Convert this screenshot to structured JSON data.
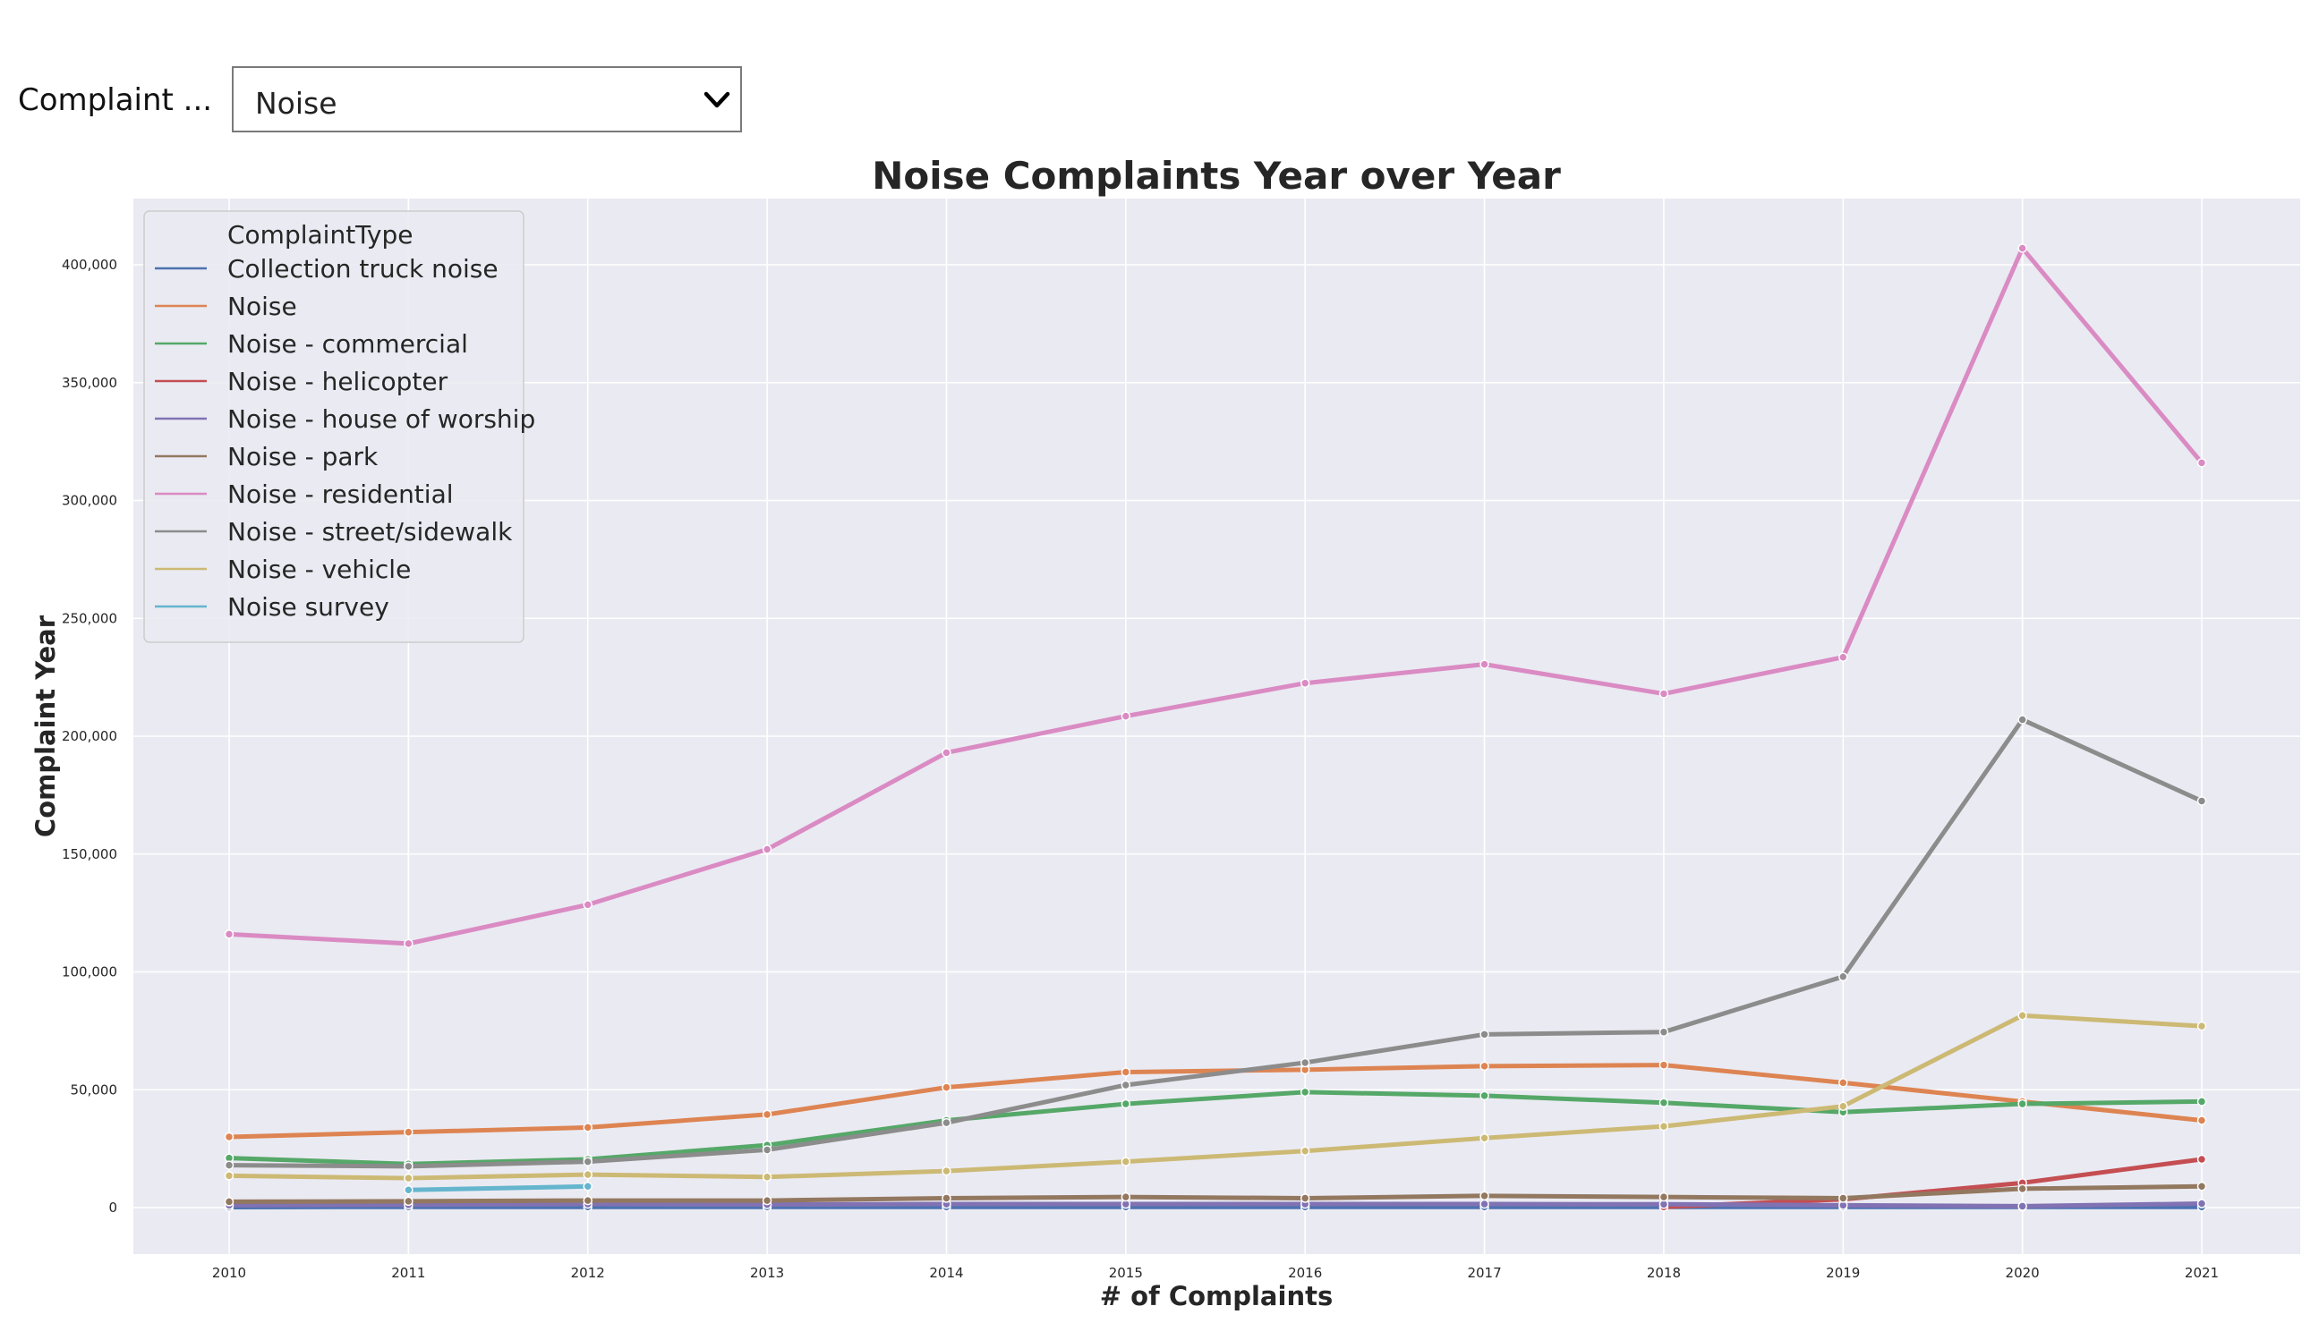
{
  "filter": {
    "label": "Complaint ...",
    "selected": "Noise"
  },
  "chart_data": {
    "type": "line",
    "title": "Noise Complaints Year over Year",
    "xlabel": "# of Complaints",
    "ylabel": "Complaint Year",
    "x": [
      2010,
      2011,
      2012,
      2013,
      2014,
      2015,
      2016,
      2017,
      2018,
      2019,
      2020,
      2021
    ],
    "ylim": [
      -20000,
      425000
    ],
    "yticks": [
      0,
      50000,
      100000,
      150000,
      200000,
      250000,
      300000,
      350000,
      400000
    ],
    "ytick_labels": [
      "0",
      "50,000",
      "100,000",
      "150,000",
      "200,000",
      "250,000",
      "300,000",
      "350,000",
      "400,000"
    ],
    "grid": true,
    "legend_title": "ComplaintType",
    "legend_position": "top-left",
    "series": [
      {
        "name": "Collection truck noise",
        "color": "#4c72b0",
        "values": [
          200,
          300,
          300,
          300,
          300,
          300,
          300,
          300,
          300,
          300,
          300,
          300
        ]
      },
      {
        "name": "Noise",
        "color": "#dd8452",
        "values": [
          30000,
          32000,
          34000,
          39500,
          51000,
          57500,
          58500,
          60000,
          60500,
          53000,
          45000,
          37000
        ]
      },
      {
        "name": "Noise - commercial",
        "color": "#55a868",
        "values": [
          21000,
          18500,
          20500,
          26500,
          37000,
          44000,
          49000,
          47500,
          44500,
          40500,
          44000,
          45000
        ]
      },
      {
        "name": "Noise - helicopter",
        "color": "#c44e52",
        "values": [
          null,
          null,
          null,
          null,
          null,
          null,
          null,
          null,
          300,
          3500,
          10500,
          20500
        ]
      },
      {
        "name": "Noise - house of worship",
        "color": "#8172b3",
        "values": [
          1000,
          1200,
          1500,
          1300,
          1500,
          1500,
          1500,
          1500,
          1400,
          1000,
          600,
          1700
        ]
      },
      {
        "name": "Noise - park",
        "color": "#937860",
        "values": [
          2500,
          2700,
          3000,
          3000,
          4000,
          4500,
          4000,
          5000,
          4500,
          4000,
          8000,
          9000
        ]
      },
      {
        "name": "Noise - residential",
        "color": "#da8bc3",
        "values": [
          116000,
          112000,
          128500,
          152000,
          193000,
          208500,
          222500,
          230500,
          218000,
          233500,
          407000,
          316000
        ]
      },
      {
        "name": "Noise - street/sidewalk",
        "color": "#8c8c8c",
        "values": [
          18000,
          17500,
          19500,
          24500,
          36000,
          52000,
          61500,
          73500,
          74500,
          98000,
          207000,
          172500
        ]
      },
      {
        "name": "Noise - vehicle",
        "color": "#ccb974",
        "values": [
          13500,
          12500,
          14000,
          13000,
          15500,
          19500,
          24000,
          29500,
          34500,
          43000,
          81500,
          77000
        ]
      },
      {
        "name": "Noise survey",
        "color": "#64b5cd",
        "values": [
          null,
          7500,
          9000,
          null,
          null,
          null,
          null,
          null,
          null,
          null,
          null,
          null
        ]
      }
    ]
  }
}
